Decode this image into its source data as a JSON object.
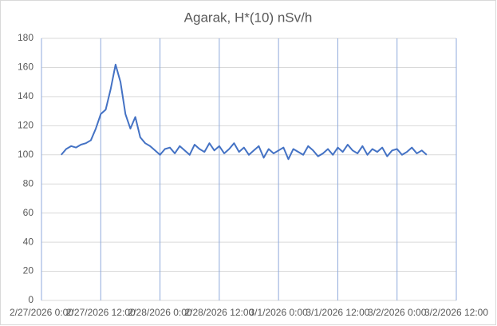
{
  "chart_data": {
    "type": "line",
    "title": "Agarak, H*(10) nSv/h",
    "x": [
      "2/27/2026 4:00",
      "2/27/2026 5:00",
      "2/27/2026 6:00",
      "2/27/2026 7:00",
      "2/27/2026 8:00",
      "2/27/2026 9:00",
      "2/27/2026 10:00",
      "2/27/2026 11:00",
      "2/27/2026 12:00",
      "2/27/2026 13:00",
      "2/27/2026 14:00",
      "2/27/2026 15:00",
      "2/27/2026 16:00",
      "2/27/2026 17:00",
      "2/27/2026 18:00",
      "2/27/2026 19:00",
      "2/27/2026 20:00",
      "2/27/2026 21:00",
      "2/27/2026 22:00",
      "2/27/2026 23:00",
      "2/28/2026 0:00",
      "2/28/2026 1:00",
      "2/28/2026 2:00",
      "2/28/2026 3:00",
      "2/28/2026 4:00",
      "2/28/2026 5:00",
      "2/28/2026 6:00",
      "2/28/2026 7:00",
      "2/28/2026 8:00",
      "2/28/2026 9:00",
      "2/28/2026 10:00",
      "2/28/2026 11:00",
      "2/28/2026 12:00",
      "2/28/2026 13:00",
      "2/28/2026 14:00",
      "2/28/2026 15:00",
      "2/28/2026 16:00",
      "2/28/2026 17:00",
      "2/28/2026 18:00",
      "2/28/2026 19:00",
      "2/28/2026 20:00",
      "2/28/2026 21:00",
      "2/28/2026 22:00",
      "2/28/2026 23:00",
      "3/1/2026 0:00",
      "3/1/2026 1:00",
      "3/1/2026 2:00",
      "3/1/2026 3:00",
      "3/1/2026 4:00",
      "3/1/2026 5:00",
      "3/1/2026 6:00",
      "3/1/2026 7:00",
      "3/1/2026 8:00",
      "3/1/2026 9:00",
      "3/1/2026 10:00",
      "3/1/2026 11:00",
      "3/1/2026 12:00",
      "3/1/2026 13:00",
      "3/1/2026 14:00",
      "3/1/2026 15:00",
      "3/1/2026 16:00",
      "3/1/2026 17:00",
      "3/1/2026 18:00",
      "3/1/2026 19:00",
      "3/1/2026 20:00",
      "3/1/2026 21:00",
      "3/1/2026 22:00",
      "3/1/2026 23:00",
      "3/2/2026 0:00",
      "3/2/2026 1:00",
      "3/2/2026 2:00",
      "3/2/2026 3:00",
      "3/2/2026 4:00",
      "3/2/2026 5:00",
      "3/2/2026 6:00"
    ],
    "series": [
      {
        "name": "H*(10)",
        "color": "#4472c4",
        "values": [
          100,
          104,
          106,
          105,
          107,
          108,
          110,
          118,
          128,
          131,
          145,
          162,
          150,
          128,
          118,
          126,
          112,
          108,
          106,
          103,
          100,
          104,
          105,
          101,
          106,
          103,
          100,
          107,
          104,
          102,
          108,
          103,
          106,
          101,
          104,
          108,
          102,
          105,
          100,
          103,
          106,
          98,
          104,
          101,
          103,
          105,
          97,
          104,
          102,
          100,
          106,
          103,
          99,
          101,
          104,
          100,
          105,
          102,
          107,
          103,
          101,
          106,
          100,
          104,
          102,
          105,
          99,
          103,
          104,
          100,
          102,
          105,
          101,
          103,
          100
        ]
      }
    ],
    "xlim": [
      "2/27/2026 0:00",
      "3/2/2026 12:00"
    ],
    "xticks": [
      "2/27/2026 0:00",
      "2/27/2026 12:00",
      "2/28/2026 0:00",
      "2/28/2026 12:00",
      "3/1/2026 0:00",
      "3/1/2026 12:00",
      "3/2/2026 0:00",
      "3/2/2026 12:00"
    ],
    "ylim": [
      0,
      180
    ],
    "yticks": [
      0,
      20,
      40,
      60,
      80,
      100,
      120,
      140,
      160,
      180
    ],
    "grid": true
  }
}
